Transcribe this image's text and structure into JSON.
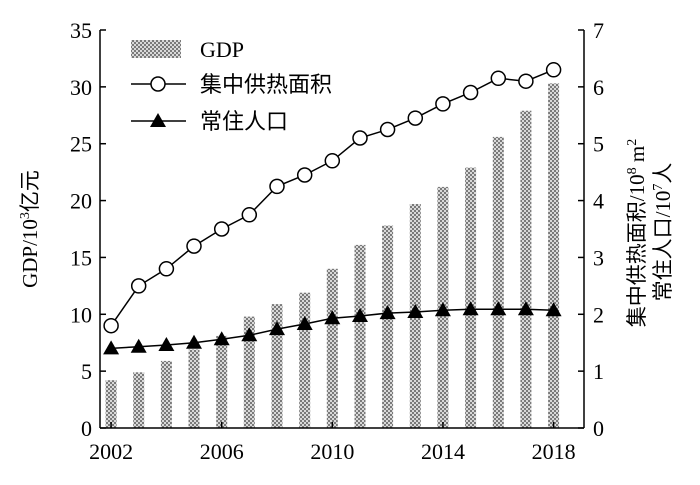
{
  "chart_data": {
    "type": "bar+line",
    "x": [
      2002,
      2003,
      2004,
      2005,
      2006,
      2007,
      2008,
      2009,
      2010,
      2011,
      2012,
      2013,
      2014,
      2015,
      2016,
      2017,
      2018
    ],
    "x_tick_labels": [
      "2002",
      "2006",
      "2010",
      "2014",
      "2018"
    ],
    "x_tick_values": [
      2002,
      2006,
      2010,
      2014,
      2018
    ],
    "left_axis": {
      "label_parts": [
        "GDP/10",
        "3",
        "亿元"
      ],
      "ylim": [
        0,
        35
      ],
      "ticks": [
        0,
        5,
        10,
        15,
        20,
        25,
        30,
        35
      ]
    },
    "right_axis": {
      "label_line1_parts": [
        "集中供热面积/10",
        "8",
        " m",
        "2"
      ],
      "label_line2_parts": [
        "常住人口/10",
        "7",
        "人"
      ],
      "ylim": [
        0,
        7
      ],
      "ticks": [
        0,
        1,
        2,
        3,
        4,
        5,
        6,
        7
      ]
    },
    "series": [
      {
        "name": "GDP",
        "type": "bar",
        "axis": "left",
        "values": [
          4.2,
          4.9,
          5.9,
          6.9,
          8.1,
          9.8,
          10.9,
          11.9,
          14.0,
          16.1,
          17.8,
          19.7,
          21.2,
          22.9,
          25.6,
          27.9,
          30.3
        ]
      },
      {
        "name": "集中供热面积",
        "type": "line",
        "marker": "circle",
        "axis": "right",
        "values": [
          1.8,
          2.5,
          2.8,
          3.2,
          3.5,
          3.75,
          4.25,
          4.45,
          4.7,
          5.1,
          5.25,
          5.45,
          5.7,
          5.9,
          6.15,
          6.1,
          6.3
        ]
      },
      {
        "name": "常住人口",
        "type": "line",
        "marker": "triangle",
        "axis": "right",
        "values": [
          1.4,
          1.43,
          1.46,
          1.5,
          1.56,
          1.63,
          1.74,
          1.83,
          1.93,
          1.97,
          2.02,
          2.04,
          2.07,
          2.09,
          2.09,
          2.09,
          2.07
        ]
      }
    ],
    "legend": {
      "position": "top-left"
    },
    "grid": false,
    "colors": {
      "bar_dark": "#7a7a7a",
      "bar_light": "#d9d9d9",
      "line": "#000000"
    }
  }
}
